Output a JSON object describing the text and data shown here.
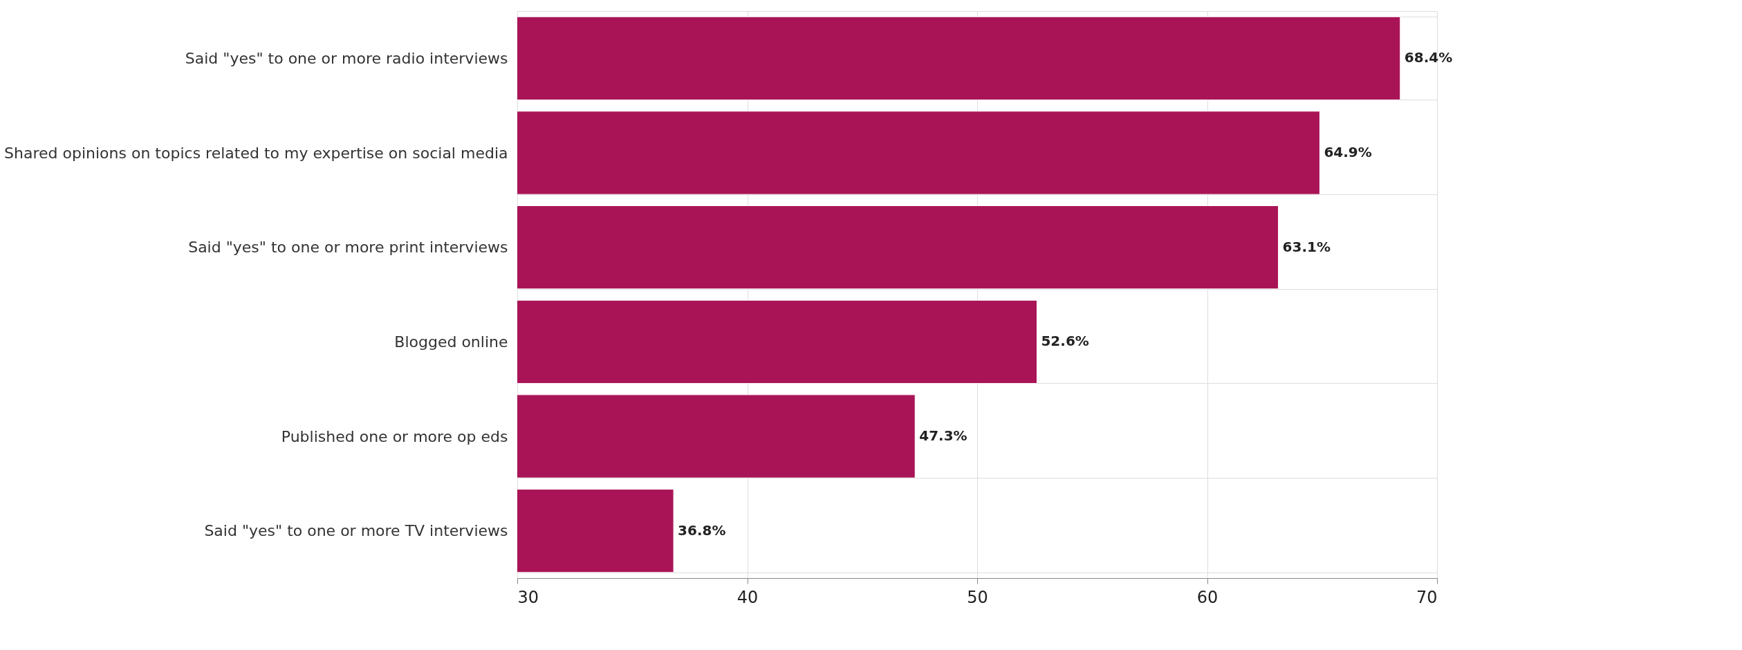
{
  "chart_data": {
    "type": "bar",
    "orientation": "horizontal",
    "categories": [
      "Said \"yes\" to one or more radio interviews",
      "Shared opinions on topics related to my expertise on social media",
      "Said \"yes\" to one or more print interviews",
      "Blogged online",
      "Published one or more op eds",
      "Said \"yes\" to one or more TV interviews"
    ],
    "values": [
      68.4,
      64.9,
      63.1,
      52.6,
      47.3,
      36.8
    ],
    "value_labels": [
      "68.4%",
      "64.9%",
      "63.1%",
      "52.6%",
      "47.3%",
      "36.8%"
    ],
    "color": "#a91457",
    "xlim": [
      30,
      70
    ],
    "xticks": [
      30,
      40,
      50,
      60,
      70
    ],
    "grid": true
  }
}
